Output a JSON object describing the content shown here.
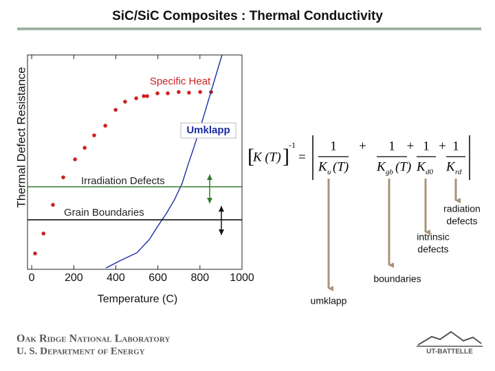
{
  "chart_data": {
    "type": "scatter",
    "title": "SiC/SiC Composites : Thermal Conductivity",
    "x_label": "Temperature (C)",
    "y_label": "Thermal Defect Resistance",
    "xlim": [
      -20,
      1000
    ],
    "xticks": [
      0,
      200,
      400,
      600,
      800,
      1000
    ],
    "ylim": [
      0,
      100
    ],
    "series": [
      {
        "name": "Specific Heat",
        "color": "#cc2222",
        "mode": "markers",
        "x": [
          16,
          56,
          101,
          150,
          206,
          252,
          297,
          350,
          399,
          444,
          497,
          533,
          549,
          598,
          647,
          699,
          748,
          801,
          853
        ],
        "values": [
          7.4,
          16.7,
          30.1,
          42.9,
          51.3,
          56.7,
          62.5,
          67,
          74.4,
          78.2,
          79.8,
          80.8,
          80.8,
          82.1,
          82.1,
          82.7,
          82.4,
          82.7,
          82.7
        ]
      },
      {
        "name": "Umklapp",
        "color": "#1a2aa0",
        "mode": "line",
        "x": [
          353,
          420,
          500,
          560,
          598,
          640,
          680,
          715,
          743,
          775,
          807,
          856,
          905
        ],
        "values": [
          0.6,
          4,
          7.7,
          14,
          19.9,
          26,
          32.7,
          40,
          48.7,
          58,
          67.9,
          84,
          100
        ]
      },
      {
        "name": "Irradiation Defects",
        "color": "#2e7d2e",
        "mode": "line",
        "x": [
          -20,
          1000
        ],
        "values": [
          38.5,
          38.5
        ]
      },
      {
        "name": "Grain Boundaries",
        "color": "#111111",
        "mode": "line",
        "x": [
          -20,
          1000
        ],
        "values": [
          23.1,
          23.1
        ]
      }
    ]
  },
  "equation": {
    "lhs": "K (T)",
    "exponent": "-1",
    "equals": "=",
    "numerator": "1",
    "operator": "+",
    "terms": [
      {
        "base": "K",
        "sub": "u",
        "arg": "(T)"
      },
      {
        "base": "K",
        "sub": "gb",
        "arg": "(T)"
      },
      {
        "base": "K",
        "sub": "d0"
      },
      {
        "base": "K",
        "sub": "rd"
      }
    ]
  },
  "arrow_labels": [
    "umklapp",
    "boundaries",
    [
      "intrinsic",
      "defects"
    ],
    [
      "radiation",
      "defects"
    ]
  ],
  "footer": {
    "org": "Oak Ridge National Laboratory",
    "dept": "U. S. Department of Energy",
    "logo": "UT-BATTELLE"
  }
}
